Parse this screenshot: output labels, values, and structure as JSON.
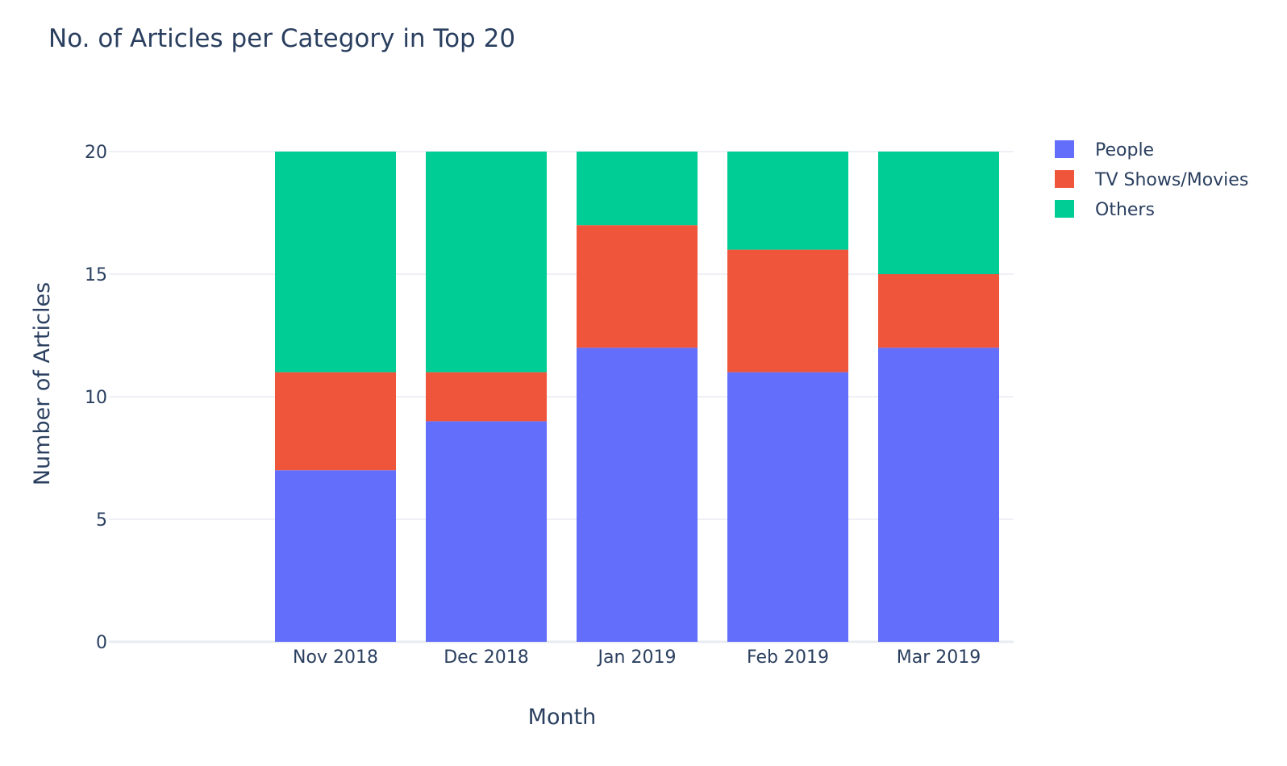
{
  "chart_data": {
    "type": "bar",
    "barmode": "stack",
    "title": "No. of Articles per Category in Top 20",
    "xlabel": "Month",
    "ylabel": "Number of Articles",
    "categories": [
      "Nov 2018",
      "Dec 2018",
      "Jan 2019",
      "Feb 2019",
      "Mar 2019"
    ],
    "ylim": [
      0,
      20
    ],
    "yticks": [
      0,
      5,
      10,
      15,
      20
    ],
    "grid": true,
    "legend_position": "top-right",
    "series": [
      {
        "name": "People",
        "color": "#636efa",
        "values": [
          7,
          9,
          12,
          11,
          12
        ]
      },
      {
        "name": "TV Shows/Movies",
        "color": "#ef553b",
        "values": [
          4,
          2,
          5,
          5,
          3
        ]
      },
      {
        "name": "Others",
        "color": "#00cc96",
        "values": [
          9,
          9,
          3,
          4,
          5
        ]
      }
    ]
  }
}
